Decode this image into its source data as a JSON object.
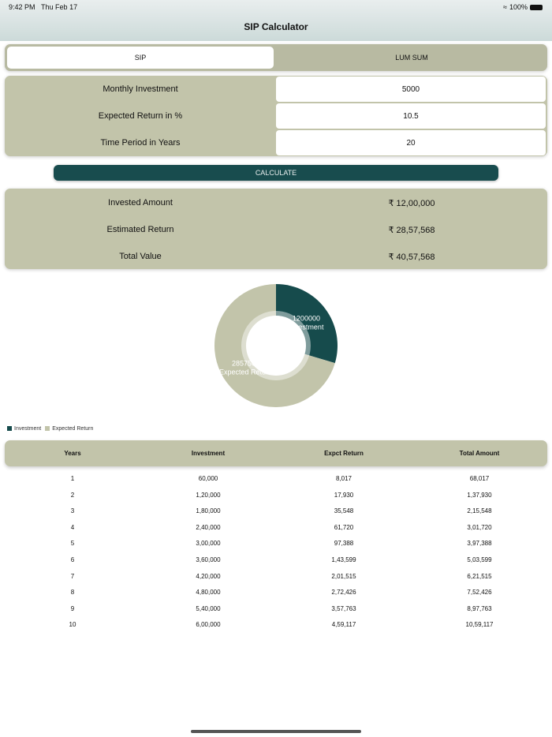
{
  "status": {
    "time": "9:42 PM",
    "date": "Thu Feb 17",
    "battery": "100%"
  },
  "header": {
    "title": "SIP Calculator"
  },
  "tabs": [
    {
      "label": "SIP",
      "selected": true
    },
    {
      "label": "LUM SUM",
      "selected": false
    }
  ],
  "inputs": [
    {
      "label": "Monthly Investment",
      "value": "5000"
    },
    {
      "label": "Expected Return in %",
      "value": "10.5"
    },
    {
      "label": "Time Period in Years",
      "value": "20"
    }
  ],
  "calculate_label": "CALCULATE",
  "results": [
    {
      "label": "Invested Amount",
      "value": "₹ 12,00,000"
    },
    {
      "label": "Estimated Return",
      "value": "₹ 28,57,568"
    },
    {
      "label": "Total Value",
      "value": "₹ 40,57,568"
    }
  ],
  "chart_data": {
    "type": "pie",
    "donut": true,
    "slices": [
      {
        "name": "Investment",
        "value": 1200000,
        "label": "1200000",
        "color": "#164b4c"
      },
      {
        "name": "Expected Return",
        "value": 2857568,
        "label": "2857568",
        "color": "#c2c4aa"
      }
    ],
    "legend": "bottom-left"
  },
  "table": {
    "headers": [
      "Years",
      "Investment",
      "Expct Return",
      "Total Amount"
    ],
    "rows": [
      [
        "1",
        "60,000",
        "8,017",
        "68,017"
      ],
      [
        "2",
        "1,20,000",
        "17,930",
        "1,37,930"
      ],
      [
        "3",
        "1,80,000",
        "35,548",
        "2,15,548"
      ],
      [
        "4",
        "2,40,000",
        "61,720",
        "3,01,720"
      ],
      [
        "5",
        "3,00,000",
        "97,388",
        "3,97,388"
      ],
      [
        "6",
        "3,60,000",
        "1,43,599",
        "5,03,599"
      ],
      [
        "7",
        "4,20,000",
        "2,01,515",
        "6,21,515"
      ],
      [
        "8",
        "4,80,000",
        "2,72,426",
        "7,52,426"
      ],
      [
        "9",
        "5,40,000",
        "3,57,763",
        "8,97,763"
      ],
      [
        "10",
        "6,00,000",
        "4,59,117",
        "10,59,117"
      ]
    ]
  }
}
